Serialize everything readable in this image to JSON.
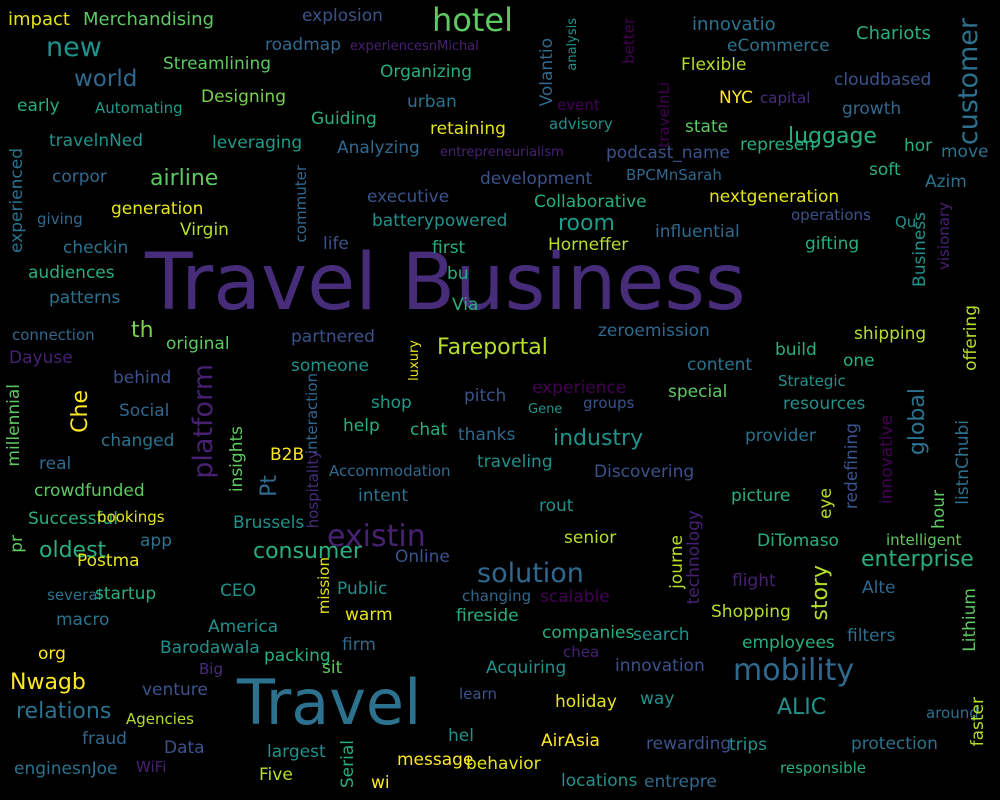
{
  "words": [
    {
      "text": "Travel Business",
      "color": "#472c7a"
    },
    {
      "text": "Travel",
      "color": "#2c728e"
    },
    {
      "text": "hotel",
      "color": "#5ec962"
    },
    {
      "text": "new",
      "color": "#21918c"
    },
    {
      "text": "world",
      "color": "#31688e"
    },
    {
      "text": "impact",
      "color": "#e5e419"
    },
    {
      "text": "Merchandising",
      "color": "#5ec962"
    },
    {
      "text": "explosion",
      "color": "#3b528b"
    },
    {
      "text": "innovatio",
      "color": "#2c728e"
    },
    {
      "text": "Chariots",
      "color": "#29af7f"
    },
    {
      "text": "customer",
      "color": "#2c728e"
    },
    {
      "text": "roadmap",
      "color": "#31688e"
    },
    {
      "text": "experiencesnMichal",
      "color": "#482173"
    },
    {
      "text": "analysis",
      "color": "#21918c"
    },
    {
      "text": "better",
      "color": "#440154"
    },
    {
      "text": "eCommerce",
      "color": "#2c728e"
    },
    {
      "text": "Streamlining",
      "color": "#5ec962"
    },
    {
      "text": "Organizing",
      "color": "#29af7f"
    },
    {
      "text": "Volantio",
      "color": "#31688e"
    },
    {
      "text": "Flexible",
      "color": "#b5de2b"
    },
    {
      "text": "cloudbased",
      "color": "#3b528b"
    },
    {
      "text": "early",
      "color": "#29af7f"
    },
    {
      "text": "Automating",
      "color": "#1e9b8a"
    },
    {
      "text": "Designing",
      "color": "#7ad151"
    },
    {
      "text": "urban",
      "color": "#2c728e"
    },
    {
      "text": "event",
      "color": "#440154"
    },
    {
      "text": "travelnLi",
      "color": "#440154"
    },
    {
      "text": "NYC",
      "color": "#fde725"
    },
    {
      "text": "capital",
      "color": "#472c7a"
    },
    {
      "text": "growth",
      "color": "#31688e"
    },
    {
      "text": "Guiding",
      "color": "#29af7f"
    },
    {
      "text": "retaining",
      "color": "#e5e419"
    },
    {
      "text": "advisory",
      "color": "#21918c"
    },
    {
      "text": "state",
      "color": "#5ec962"
    },
    {
      "text": "luggage",
      "color": "#29af7f"
    },
    {
      "text": "travelnNed",
      "color": "#21918c"
    },
    {
      "text": "leveraging",
      "color": "#1e9b8a"
    },
    {
      "text": "Analyzing",
      "color": "#31688e"
    },
    {
      "text": "entrepreneurialism",
      "color": "#482173"
    },
    {
      "text": "podcast_name",
      "color": "#3b528b"
    },
    {
      "text": "represen",
      "color": "#29af7f"
    },
    {
      "text": "hor",
      "color": "#29af7f"
    },
    {
      "text": "move",
      "color": "#2c728e"
    },
    {
      "text": "experienced",
      "color": "#2c728e"
    },
    {
      "text": "corpor",
      "color": "#31688e"
    },
    {
      "text": "airline",
      "color": "#5ec962"
    },
    {
      "text": "commuter",
      "color": "#31688e"
    },
    {
      "text": "development",
      "color": "#3b528b"
    },
    {
      "text": "BPCMnSarah",
      "color": "#31688e"
    },
    {
      "text": "soft",
      "color": "#29af7f"
    },
    {
      "text": "Azim",
      "color": "#2c728e"
    },
    {
      "text": "giving",
      "color": "#31688e"
    },
    {
      "text": "generation",
      "color": "#e5e419"
    },
    {
      "text": "executive",
      "color": "#3b528b"
    },
    {
      "text": "Collaborative",
      "color": "#29af7f"
    },
    {
      "text": "nextgeneration",
      "color": "#e5e419"
    },
    {
      "text": "operations",
      "color": "#3b528b"
    },
    {
      "text": "Qu",
      "color": "#21918c"
    },
    {
      "text": "Virgin",
      "color": "#b5de2b"
    },
    {
      "text": "batterypowered",
      "color": "#21918c"
    },
    {
      "text": "room",
      "color": "#1e9b8a"
    },
    {
      "text": "influential",
      "color": "#31688e"
    },
    {
      "text": "checkin",
      "color": "#2c728e"
    },
    {
      "text": "life",
      "color": "#3b528b"
    },
    {
      "text": "first",
      "color": "#29af7f"
    },
    {
      "text": "Horneffer",
      "color": "#b5de2b"
    },
    {
      "text": "gifting",
      "color": "#29af7f"
    },
    {
      "text": "Business",
      "color": "#21918c"
    },
    {
      "text": "visionary",
      "color": "#482173"
    },
    {
      "text": "audiences",
      "color": "#29af7f"
    },
    {
      "text": "bu",
      "color": "#29af7f"
    },
    {
      "text": "patterns",
      "color": "#2c728e"
    },
    {
      "text": "Via",
      "color": "#29af7f"
    },
    {
      "text": "connection",
      "color": "#31688e"
    },
    {
      "text": "th",
      "color": "#7ad151"
    },
    {
      "text": "original",
      "color": "#5ec962"
    },
    {
      "text": "partnered",
      "color": "#3b528b"
    },
    {
      "text": "Fareportal",
      "color": "#b5de2b"
    },
    {
      "text": "zeroemission",
      "color": "#31688e"
    },
    {
      "text": "shipping",
      "color": "#b5de2b"
    },
    {
      "text": "offering",
      "color": "#b5de2b"
    },
    {
      "text": "Dayuse",
      "color": "#482173"
    },
    {
      "text": "platform",
      "color": "#482173"
    },
    {
      "text": "someone",
      "color": "#21918c"
    },
    {
      "text": "luxury",
      "color": "#e5e419"
    },
    {
      "text": "content",
      "color": "#2c728e"
    },
    {
      "text": "build",
      "color": "#29af7f"
    },
    {
      "text": "one",
      "color": "#29af7f"
    },
    {
      "text": "millennial",
      "color": "#5ec962"
    },
    {
      "text": "behind",
      "color": "#3b528b"
    },
    {
      "text": "Che",
      "color": "#fde725"
    },
    {
      "text": "experience",
      "color": "#440154"
    },
    {
      "text": "Strategic",
      "color": "#21918c"
    },
    {
      "text": "Social",
      "color": "#31688e"
    },
    {
      "text": "interaction",
      "color": "#31688e"
    },
    {
      "text": "shop",
      "color": "#1e9b8a"
    },
    {
      "text": "pitch",
      "color": "#3b528b"
    },
    {
      "text": "Gene",
      "color": "#21918c"
    },
    {
      "text": "groups",
      "color": "#3b528b"
    },
    {
      "text": "special",
      "color": "#5ec962"
    },
    {
      "text": "resources",
      "color": "#21918c"
    },
    {
      "text": "global",
      "color": "#2c728e"
    },
    {
      "text": "changed",
      "color": "#2c728e"
    },
    {
      "text": "insights",
      "color": "#5ec962"
    },
    {
      "text": "help",
      "color": "#29af7f"
    },
    {
      "text": "chat",
      "color": "#29af7f"
    },
    {
      "text": "thanks",
      "color": "#31688e"
    },
    {
      "text": "industry",
      "color": "#21918c"
    },
    {
      "text": "provider",
      "color": "#2c728e"
    },
    {
      "text": "redefining",
      "color": "#3b528b"
    },
    {
      "text": "innovative",
      "color": "#440154"
    },
    {
      "text": "listnChubi",
      "color": "#2c728e"
    },
    {
      "text": "real",
      "color": "#31688e"
    },
    {
      "text": "B2B",
      "color": "#fde725"
    },
    {
      "text": "Pt",
      "color": "#31688e"
    },
    {
      "text": "Accommodation",
      "color": "#31688e"
    },
    {
      "text": "traveling",
      "color": "#21918c"
    },
    {
      "text": "Discovering",
      "color": "#3b528b"
    },
    {
      "text": "crowdfunded",
      "color": "#5ec962"
    },
    {
      "text": "hospitality",
      "color": "#472c7a"
    },
    {
      "text": "intent",
      "color": "#2c728e"
    },
    {
      "text": "picture",
      "color": "#29af7f"
    },
    {
      "text": "eye",
      "color": "#b5de2b"
    },
    {
      "text": "hour",
      "color": "#5ec962"
    },
    {
      "text": "Successful",
      "color": "#29af7f"
    },
    {
      "text": "bookings",
      "color": "#e5e419"
    },
    {
      "text": "Brussels",
      "color": "#21918c"
    },
    {
      "text": "rout",
      "color": "#21918c"
    },
    {
      "text": "technology",
      "color": "#482173"
    },
    {
      "text": "existin",
      "color": "#482173"
    },
    {
      "text": "senior",
      "color": "#b5de2b"
    },
    {
      "text": "DiTomaso",
      "color": "#29af7f"
    },
    {
      "text": "intelligent",
      "color": "#5ec962"
    },
    {
      "text": "pr",
      "color": "#5ec962"
    },
    {
      "text": "oldest",
      "color": "#29af7f"
    },
    {
      "text": "app",
      "color": "#2c728e"
    },
    {
      "text": "consumer",
      "color": "#29af7f"
    },
    {
      "text": "enterprise",
      "color": "#29af7f"
    },
    {
      "text": "Postma",
      "color": "#e5e419"
    },
    {
      "text": "Online",
      "color": "#3b528b"
    },
    {
      "text": "solution",
      "color": "#31688e"
    },
    {
      "text": "journe",
      "color": "#b5de2b"
    },
    {
      "text": "flight",
      "color": "#482173"
    },
    {
      "text": "story",
      "color": "#b5de2b"
    },
    {
      "text": "Alte",
      "color": "#31688e"
    },
    {
      "text": "several",
      "color": "#2c728e"
    },
    {
      "text": "startup",
      "color": "#29af7f"
    },
    {
      "text": "CEO",
      "color": "#21918c"
    },
    {
      "text": "mission",
      "color": "#e5e419"
    },
    {
      "text": "Public",
      "color": "#21918c"
    },
    {
      "text": "changing",
      "color": "#31688e"
    },
    {
      "text": "scalable",
      "color": "#440154"
    },
    {
      "text": "Shopping",
      "color": "#b5de2b"
    },
    {
      "text": "Lithium",
      "color": "#5ec962"
    },
    {
      "text": "macro",
      "color": "#2c728e"
    },
    {
      "text": "warm",
      "color": "#e5e419"
    },
    {
      "text": "fireside",
      "color": "#29af7f"
    },
    {
      "text": "America",
      "color": "#21918c"
    },
    {
      "text": "companies",
      "color": "#29af7f"
    },
    {
      "text": "search",
      "color": "#21918c"
    },
    {
      "text": "employees",
      "color": "#29af7f"
    },
    {
      "text": "filters",
      "color": "#2c728e"
    },
    {
      "text": "org",
      "color": "#fde725"
    },
    {
      "text": "Barodawala",
      "color": "#21918c"
    },
    {
      "text": "firm",
      "color": "#31688e"
    },
    {
      "text": "chea",
      "color": "#482173"
    },
    {
      "text": "Big",
      "color": "#472c7a"
    },
    {
      "text": "packing",
      "color": "#29af7f"
    },
    {
      "text": "sit",
      "color": "#5ec962"
    },
    {
      "text": "Acquiring",
      "color": "#21918c"
    },
    {
      "text": "innovation",
      "color": "#3b528b"
    },
    {
      "text": "mobility",
      "color": "#31688e"
    },
    {
      "text": "Nwagb",
      "color": "#fde725"
    },
    {
      "text": "venture",
      "color": "#3b528b"
    },
    {
      "text": "learn",
      "color": "#3b528b"
    },
    {
      "text": "holiday",
      "color": "#e5e419"
    },
    {
      "text": "way",
      "color": "#21918c"
    },
    {
      "text": "relations",
      "color": "#2c728e"
    },
    {
      "text": "Agencies",
      "color": "#b5de2b"
    },
    {
      "text": "ALIC",
      "color": "#21918c"
    },
    {
      "text": "around",
      "color": "#2c728e"
    },
    {
      "text": "faster",
      "color": "#b5de2b"
    },
    {
      "text": "fraud",
      "color": "#31688e"
    },
    {
      "text": "Data",
      "color": "#3b528b"
    },
    {
      "text": "largest",
      "color": "#21918c"
    },
    {
      "text": "hel",
      "color": "#21918c"
    },
    {
      "text": "AirAsia",
      "color": "#fde725"
    },
    {
      "text": "rewarding",
      "color": "#3b528b"
    },
    {
      "text": "trips",
      "color": "#21918c"
    },
    {
      "text": "protection",
      "color": "#2c728e"
    },
    {
      "text": "enginesnJoe",
      "color": "#2c728e"
    },
    {
      "text": "WiFi",
      "color": "#482173"
    },
    {
      "text": "Five",
      "color": "#b5de2b"
    },
    {
      "text": "Serial",
      "color": "#29af7f"
    },
    {
      "text": "message",
      "color": "#fde725"
    },
    {
      "text": "behavior",
      "color": "#e5e419"
    },
    {
      "text": "wi",
      "color": "#fde725"
    },
    {
      "text": "locations",
      "color": "#21918c"
    },
    {
      "text": "entrepre",
      "color": "#31688e"
    },
    {
      "text": "responsible",
      "color": "#29af7f"
    }
  ]
}
